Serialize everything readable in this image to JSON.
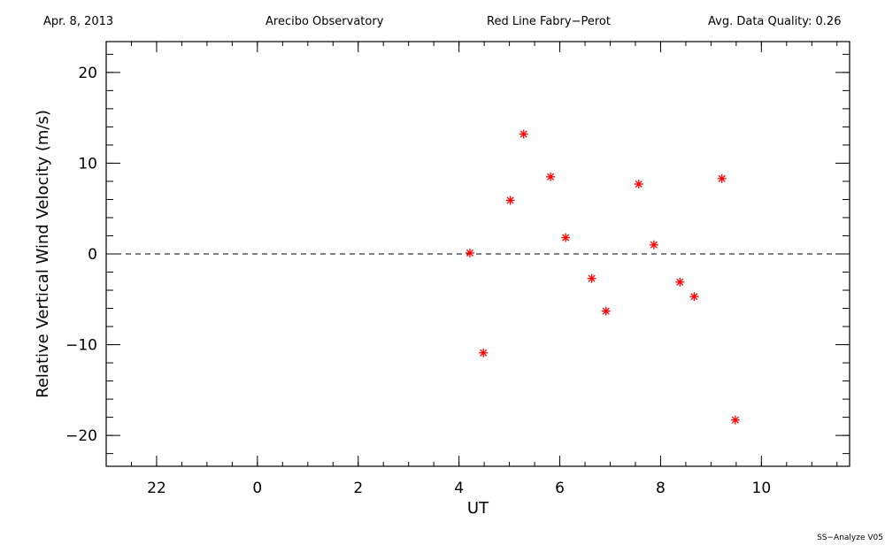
{
  "header": {
    "date": "Apr. 8, 2013",
    "site": "Arecibo Observatory",
    "instrument": "Red Line Fabry−Perot",
    "quality": "Avg. Data Quality: 0.26"
  },
  "footer": "SS−Analyze V05",
  "chart_data": {
    "type": "scatter",
    "xlabel": "UT",
    "ylabel": "Relative Vertical Wind Velocity (m/s)",
    "x_range_hours": [
      21.0,
      11.75
    ],
    "ylim": [
      -23.4,
      23.4
    ],
    "x_ticks": [
      {
        "value": 22,
        "label": "22"
      },
      {
        "value": 24,
        "label": "0"
      },
      {
        "value": 26,
        "label": "2"
      },
      {
        "value": 28,
        "label": "4"
      },
      {
        "value": 30,
        "label": "6"
      },
      {
        "value": 32,
        "label": "8"
      },
      {
        "value": 34,
        "label": "10"
      }
    ],
    "y_ticks": [
      {
        "value": -20,
        "label": "−20"
      },
      {
        "value": -10,
        "label": "−10"
      },
      {
        "value": 0,
        "label": "0"
      },
      {
        "value": 10,
        "label": "10"
      },
      {
        "value": 20,
        "label": "20"
      }
    ],
    "reference_line": {
      "y": 0,
      "style": "dashed"
    },
    "marker": "asterisk",
    "marker_color": "#ff0000",
    "points": [
      {
        "x": "04:13",
        "y": 0.1
      },
      {
        "x": "04:29",
        "y": -10.9
      },
      {
        "x": "05:01",
        "y": 5.9
      },
      {
        "x": "05:17",
        "y": 13.2
      },
      {
        "x": "05:49",
        "y": 8.5
      },
      {
        "x": "06:07",
        "y": 1.8
      },
      {
        "x": "06:38",
        "y": -2.7
      },
      {
        "x": "06:55",
        "y": -6.3
      },
      {
        "x": "07:34",
        "y": 7.7
      },
      {
        "x": "07:52",
        "y": 1.0
      },
      {
        "x": "08:23",
        "y": -3.1
      },
      {
        "x": "08:40",
        "y": -4.7
      },
      {
        "x": "09:13",
        "y": 8.3
      },
      {
        "x": "09:29",
        "y": -18.3
      }
    ]
  }
}
